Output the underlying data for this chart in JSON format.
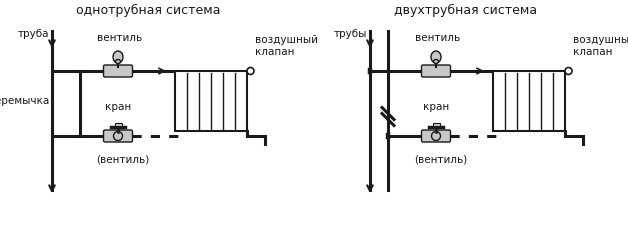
{
  "title_left": "однотрубная система",
  "title_right": "двухтрубная система",
  "bg_color": "#ffffff",
  "line_color": "#1a1a1a",
  "valve_color": "#c8c8c8",
  "font_size_title": 9,
  "font_size_label": 7.5,
  "label_truba_l": "труба",
  "label_truba_r": "трубы",
  "label_ventil": "вентиль",
  "label_vozdush": "воздушный\nклапан",
  "label_peremychka": "перемычка",
  "label_kran": "кран",
  "label_ventil2": "(вентиль)"
}
